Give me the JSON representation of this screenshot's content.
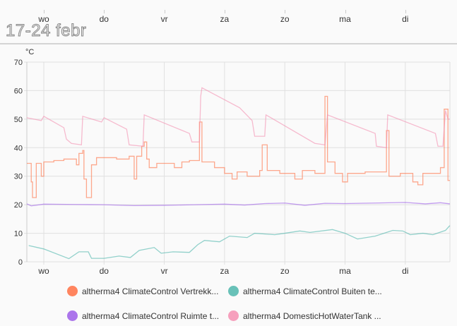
{
  "title": "17-24 febr",
  "chart_data": {
    "type": "line",
    "unit": "°C",
    "ylim": [
      0,
      70
    ],
    "yticks": [
      0,
      10,
      20,
      30,
      40,
      50,
      60,
      70
    ],
    "xlim": [
      "02-17 17:00",
      "02-24 17:45"
    ],
    "xticks": [
      {
        "label": "wo",
        "at": "02-18 00:00"
      },
      {
        "label": "do",
        "at": "02-19 00:00"
      },
      {
        "label": "vr",
        "at": "02-20 00:00"
      },
      {
        "label": "za",
        "at": "02-21 00:00"
      },
      {
        "label": "zo",
        "at": "02-22 00:00"
      },
      {
        "label": "ma",
        "at": "02-23 00:00"
      },
      {
        "label": "di",
        "at": "02-24 00:00"
      }
    ],
    "grid": true,
    "legend_position": "bottom",
    "series": [
      {
        "name": "altherma4 ClimateControl Vertrekk...",
        "color": "#ff7043",
        "step": true,
        "points": [
          [
            "02-17 17:00",
            34.5
          ],
          [
            "02-17 19:00",
            28
          ],
          [
            "02-17 19:30",
            22.5
          ],
          [
            "02-17 21:00",
            34.5
          ],
          [
            "02-17 23:00",
            30
          ],
          [
            "02-18 00:00",
            35
          ],
          [
            "02-18 04:00",
            35.5
          ],
          [
            "02-18 08:00",
            36
          ],
          [
            "02-18 13:00",
            34
          ],
          [
            "02-18 14:00",
            38
          ],
          [
            "02-18 15:30",
            39
          ],
          [
            "02-18 16:00",
            29
          ],
          [
            "02-18 17:00",
            22.5
          ],
          [
            "02-18 19:00",
            34
          ],
          [
            "02-18 21:00",
            36.5
          ],
          [
            "02-19 05:00",
            36
          ],
          [
            "02-19 10:00",
            37
          ],
          [
            "02-19 12:00",
            29
          ],
          [
            "02-19 13:00",
            37
          ],
          [
            "02-19 15:00",
            40.5
          ],
          [
            "02-19 16:00",
            42
          ],
          [
            "02-19 17:00",
            36
          ],
          [
            "02-19 18:00",
            33
          ],
          [
            "02-19 21:00",
            34.5
          ],
          [
            "02-20 04:00",
            33
          ],
          [
            "02-20 07:00",
            35
          ],
          [
            "02-20 10:00",
            35.5
          ],
          [
            "02-20 14:00",
            49
          ],
          [
            "02-20 15:00",
            35
          ],
          [
            "02-20 20:00",
            33
          ],
          [
            "02-21 00:00",
            31
          ],
          [
            "02-21 03:00",
            29
          ],
          [
            "02-21 05:00",
            31.5
          ],
          [
            "02-21 09:00",
            30
          ],
          [
            "02-21 14:00",
            32
          ],
          [
            "02-21 15:00",
            41
          ],
          [
            "02-21 17:00",
            32
          ],
          [
            "02-21 22:00",
            31
          ],
          [
            "02-22 04:00",
            29
          ],
          [
            "02-22 07:00",
            32
          ],
          [
            "02-22 12:00",
            31
          ],
          [
            "02-22 16:00",
            58
          ],
          [
            "02-22 17:00",
            35
          ],
          [
            "02-22 20:00",
            31
          ],
          [
            "02-22 23:00",
            28
          ],
          [
            "02-23 01:00",
            31
          ],
          [
            "02-23 08:00",
            31.5
          ],
          [
            "02-23 16:30",
            46
          ],
          [
            "02-23 17:30",
            30
          ],
          [
            "02-23 22:00",
            31
          ],
          [
            "02-24 03:00",
            28
          ],
          [
            "02-24 05:00",
            27
          ],
          [
            "02-24 07:00",
            31
          ],
          [
            "02-24 14:00",
            33
          ],
          [
            "02-24 15:30",
            53.5
          ],
          [
            "02-24 17:00",
            28.5
          ],
          [
            "02-24 17:45",
            28.5
          ]
        ]
      },
      {
        "name": "altherma4 ClimateControl Buiten te...",
        "color": "#4db6ac",
        "step": false,
        "points": [
          [
            "02-17 18:00",
            5.7
          ],
          [
            "02-18 00:00",
            4.5
          ],
          [
            "02-18 10:00",
            1.1
          ],
          [
            "02-18 14:00",
            3.5
          ],
          [
            "02-18 17:45",
            3.5
          ],
          [
            "02-18 19:00",
            1.2
          ],
          [
            "02-19 00:00",
            1.2
          ],
          [
            "02-19 06:00",
            2
          ],
          [
            "02-19 10:30",
            1.5
          ],
          [
            "02-19 14:00",
            4
          ],
          [
            "02-19 20:00",
            5
          ],
          [
            "02-19 22:45",
            3
          ],
          [
            "02-20 03:30",
            3.5
          ],
          [
            "02-20 10:00",
            3.3
          ],
          [
            "02-20 13:20",
            6
          ],
          [
            "02-20 16:00",
            7.5
          ],
          [
            "02-20 22:00",
            7
          ],
          [
            "02-21 02:00",
            9
          ],
          [
            "02-21 09:00",
            8.5
          ],
          [
            "02-21 12:00",
            10
          ],
          [
            "02-21 20:00",
            9.5
          ],
          [
            "02-22 00:00",
            10
          ],
          [
            "02-22 06:00",
            10.8
          ],
          [
            "02-22 10:00",
            10.3
          ],
          [
            "02-22 19:00",
            11.3
          ],
          [
            "02-23 00:00",
            10
          ],
          [
            "02-23 05:00",
            8
          ],
          [
            "02-23 12:00",
            9
          ],
          [
            "02-23 19:00",
            11
          ],
          [
            "02-23 23:00",
            10.8
          ],
          [
            "02-24 02:00",
            9.5
          ],
          [
            "02-24 07:00",
            10
          ],
          [
            "02-24 11:00",
            9.5
          ],
          [
            "02-24 16:00",
            11
          ],
          [
            "02-24 17:45",
            12.7
          ]
        ]
      },
      {
        "name": "altherma4 ClimateControl Ruimte t...",
        "color": "#9c5de8",
        "step": false,
        "points": [
          [
            "02-17 17:00",
            20.3
          ],
          [
            "02-17 19:00",
            19.6
          ],
          [
            "02-18 00:00",
            20.2
          ],
          [
            "02-18 12:00",
            20.1
          ],
          [
            "02-19 00:00",
            20
          ],
          [
            "02-19 12:00",
            19.7
          ],
          [
            "02-20 00:00",
            19.8
          ],
          [
            "02-20 12:00",
            20
          ],
          [
            "02-21 00:00",
            20.2
          ],
          [
            "02-21 08:00",
            19.9
          ],
          [
            "02-21 16:00",
            20.4
          ],
          [
            "02-22 00:00",
            20.6
          ],
          [
            "02-22 08:00",
            19.8
          ],
          [
            "02-22 16:00",
            20.5
          ],
          [
            "02-23 00:00",
            20.4
          ],
          [
            "02-23 12:00",
            20.6
          ],
          [
            "02-24 00:00",
            20.8
          ],
          [
            "02-24 08:00",
            20.3
          ],
          [
            "02-24 14:00",
            20.7
          ],
          [
            "02-24 17:45",
            20.3
          ]
        ]
      },
      {
        "name": "altherma4 DomesticHotWaterTank ...",
        "color": "#f48fb1",
        "step": false,
        "points": [
          [
            "02-17 17:00",
            50.5
          ],
          [
            "02-17 23:00",
            49.5
          ],
          [
            "02-18 00:00",
            51
          ],
          [
            "02-18 08:00",
            47
          ],
          [
            "02-18 09:00",
            43
          ],
          [
            "02-18 11:00",
            41.5
          ],
          [
            "02-18 15:00",
            41
          ],
          [
            "02-18 15:30",
            51
          ],
          [
            "02-18 23:00",
            49
          ],
          [
            "02-19 00:00",
            50.5
          ],
          [
            "02-19 09:00",
            46.5
          ],
          [
            "02-19 10:00",
            41
          ],
          [
            "02-19 15:30",
            40.5
          ],
          [
            "02-19 16:00",
            51.5
          ],
          [
            "02-20 10:00",
            45
          ],
          [
            "02-20 11:00",
            42
          ],
          [
            "02-20 14:00",
            42
          ],
          [
            "02-20 14:30",
            58
          ],
          [
            "02-20 15:00",
            61
          ],
          [
            "02-21 06:00",
            54
          ],
          [
            "02-21 11:00",
            49.5
          ],
          [
            "02-21 12:00",
            44
          ],
          [
            "02-21 16:00",
            44
          ],
          [
            "02-21 16:30",
            51.5
          ],
          [
            "02-22 12:00",
            41.5
          ],
          [
            "02-22 16:00",
            41
          ],
          [
            "02-22 17:00",
            51.5
          ],
          [
            "02-23 12:00",
            45
          ],
          [
            "02-23 12:30",
            40.5
          ],
          [
            "02-23 16:30",
            40
          ],
          [
            "02-23 17:00",
            51.5
          ],
          [
            "02-24 12:00",
            45
          ],
          [
            "02-24 13:00",
            40.5
          ],
          [
            "02-24 15:00",
            40.5
          ],
          [
            "02-24 16:00",
            53
          ],
          [
            "02-24 17:00",
            50
          ],
          [
            "02-24 17:45",
            50
          ]
        ]
      }
    ]
  }
}
